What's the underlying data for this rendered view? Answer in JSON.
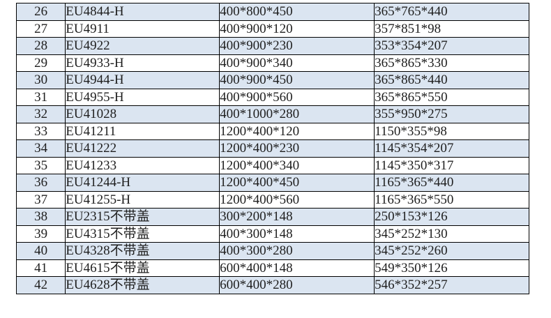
{
  "colors": {
    "row_shade": "#dbe5f1",
    "row_plain": "#ffffff",
    "grid_border": "#000000",
    "text": "#1f1f1f",
    "page_background": "#ffffff"
  },
  "table": {
    "rows": [
      {
        "no": "26",
        "model": "EU4844-H",
        "outer_dim": "400*800*450",
        "inner_dim": "365*765*440",
        "shaded": true
      },
      {
        "no": "27",
        "model": "EU4911",
        "outer_dim": "400*900*120",
        "inner_dim": "357*851*98",
        "shaded": false
      },
      {
        "no": "28",
        "model": "EU4922",
        "outer_dim": "400*900*230",
        "inner_dim": "353*354*207",
        "shaded": true
      },
      {
        "no": "29",
        "model": "EU4933-H",
        "outer_dim": "400*900*340",
        "inner_dim": "365*865*330",
        "shaded": false
      },
      {
        "no": "30",
        "model": "EU4944-H",
        "outer_dim": "400*900*450",
        "inner_dim": "365*865*440",
        "shaded": true
      },
      {
        "no": "31",
        "model": "EU4955-H",
        "outer_dim": "400*900*560",
        "inner_dim": "365*865*550",
        "shaded": false
      },
      {
        "no": "32",
        "model": "EU41028",
        "outer_dim": "400*1000*280",
        "inner_dim": "355*950*275",
        "shaded": true
      },
      {
        "no": "33",
        "model": "EU41211",
        "outer_dim": "1200*400*120",
        "inner_dim": "1150*355*98",
        "shaded": false
      },
      {
        "no": "34",
        "model": "EU41222",
        "outer_dim": "1200*400*230",
        "inner_dim": "1145*354*207",
        "shaded": true
      },
      {
        "no": "35",
        "model": "EU41233",
        "outer_dim": "1200*400*340",
        "inner_dim": "1145*350*317",
        "shaded": false
      },
      {
        "no": "36",
        "model": "EU41244-H",
        "outer_dim": "1200*400*450",
        "inner_dim": "1165*365*440",
        "shaded": true
      },
      {
        "no": "37",
        "model": "EU41255-H",
        "outer_dim": "1200*400*560",
        "inner_dim": "1165*365*550",
        "shaded": false
      },
      {
        "no": "38",
        "model": "EU2315不带盖",
        "outer_dim": "300*200*148",
        "inner_dim": "250*153*126",
        "shaded": true
      },
      {
        "no": "39",
        "model": "EU4315不带盖",
        "outer_dim": "400*300*148",
        "inner_dim": "345*252*130",
        "shaded": false
      },
      {
        "no": "40",
        "model": "EU4328不带盖",
        "outer_dim": "400*300*280",
        "inner_dim": "345*252*260",
        "shaded": true
      },
      {
        "no": "41",
        "model": "EU4615不带盖",
        "outer_dim": "600*400*148",
        "inner_dim": "549*350*126",
        "shaded": false
      },
      {
        "no": "42",
        "model": "EU4628不带盖",
        "outer_dim": "600*400*280",
        "inner_dim": "546*352*257",
        "shaded": true
      }
    ]
  }
}
